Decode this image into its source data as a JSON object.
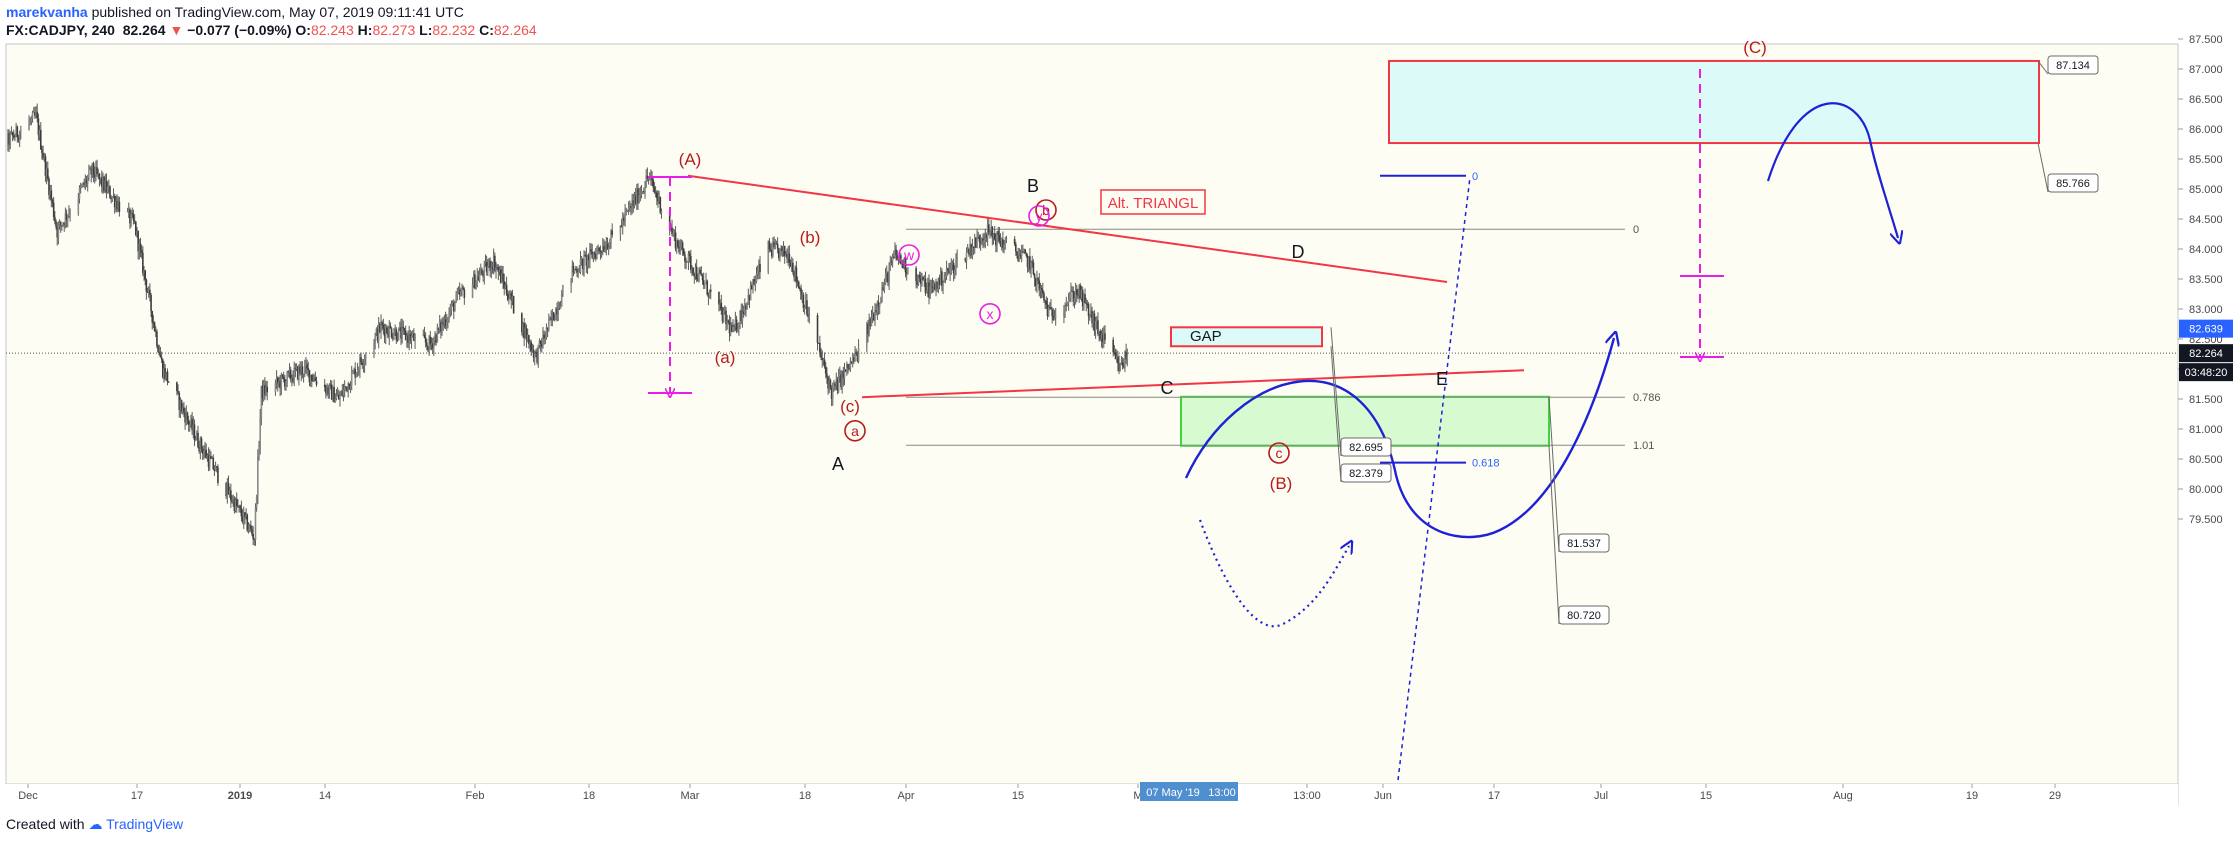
{
  "header": {
    "username": "marekvanha",
    "published_text": "published on TradingView.com, May 07, 2019 09:11:41 UTC",
    "symbol": "FX:CADJPY, 240",
    "last_price": "82.264",
    "change_arrow": "▼",
    "change": "−0.077 (−0.09%)",
    "ohlc": [
      {
        "label": "O:",
        "value": "82.243"
      },
      {
        "label": "H:",
        "value": "82.273"
      },
      {
        "label": "L:",
        "value": "82.232"
      },
      {
        "label": "C:",
        "value": "82.264"
      }
    ]
  },
  "footer": {
    "created_with": "Created with",
    "brand": "TradingView"
  },
  "colors": {
    "background": "#fdfdf3",
    "candle": "#5c5c5c",
    "wave_red": "#b71c1c",
    "trend_red": "#f23645",
    "blue": "#1e22d6",
    "magenta": "#e91ee6",
    "cyan_box": "#dcfbf8",
    "green_box": "#d8fad0",
    "green_border": "#3cd63c",
    "axis_blue": "#2962ff"
  },
  "chart_data": {
    "type": "candlestick",
    "symbol": "FX:CADJPY",
    "interval": "240",
    "ylim": [
      79.1,
      87.65
    ],
    "y_ticks": [
      "87.500",
      "87.000",
      "86.500",
      "86.000",
      "85.500",
      "85.000",
      "84.500",
      "84.000",
      "83.500",
      "83.000",
      "82.500",
      "82.000",
      "81.500",
      "81.000",
      "80.500",
      "80.000",
      "79.500"
    ],
    "x_ticks": [
      "Dec",
      "17",
      "2019",
      "14",
      "Feb",
      "18",
      "Mar",
      "18",
      "Apr",
      "15",
      "M",
      "13:00",
      "Jun",
      "17",
      "Jul",
      "15",
      "Aug",
      "19",
      "29"
    ],
    "crosshair_date_label": "07 May '19",
    "crosshair_time_label": "13:00",
    "price_markers": [
      {
        "label": "82.639",
        "value": 82.639,
        "color": "#2962ff"
      },
      {
        "label": "82.264",
        "value": 82.264,
        "color": "#131722"
      },
      {
        "label": "03:48:20",
        "value": 82.05,
        "color": "#131722"
      }
    ],
    "current_price": 82.264,
    "price_path": [
      {
        "date": "2018-11-27",
        "price": 85.6
      },
      {
        "date": "2018-12-03",
        "price": 86.2
      },
      {
        "date": "2018-12-06",
        "price": 84.3
      },
      {
        "date": "2018-12-11",
        "price": 85.3
      },
      {
        "date": "2018-12-17",
        "price": 84.4
      },
      {
        "date": "2018-12-21",
        "price": 82.0
      },
      {
        "date": "2018-12-26",
        "price": 80.8
      },
      {
        "date": "2019-01-03",
        "price": 79.2
      },
      {
        "date": "2019-01-04",
        "price": 81.6
      },
      {
        "date": "2019-01-10",
        "price": 82.0
      },
      {
        "date": "2019-01-15",
        "price": 81.5
      },
      {
        "date": "2019-01-21",
        "price": 82.7
      },
      {
        "date": "2019-01-28",
        "price": 82.4
      },
      {
        "date": "2019-02-01",
        "price": 83.2
      },
      {
        "date": "2019-02-06",
        "price": 83.8
      },
      {
        "date": "2019-02-12",
        "price": 82.2
      },
      {
        "date": "2019-02-17",
        "price": 83.6
      },
      {
        "date": "2019-02-23",
        "price": 84.2
      },
      {
        "date": "2019-02-28",
        "price": 85.2
      },
      {
        "date": "2019-03-04",
        "price": 84.1
      },
      {
        "date": "2019-03-08",
        "price": 83.4
      },
      {
        "date": "2019-03-12",
        "price": 82.6
      },
      {
        "date": "2019-03-17",
        "price": 84.0
      },
      {
        "date": "2019-03-20",
        "price": 83.9
      },
      {
        "date": "2019-03-24",
        "price": 82.4
      },
      {
        "date": "2019-03-26",
        "price": 81.6
      },
      {
        "date": "2019-03-30",
        "price": 82.3
      },
      {
        "date": "2019-04-04",
        "price": 83.9
      },
      {
        "date": "2019-04-09",
        "price": 83.3
      },
      {
        "date": "2019-04-17",
        "price": 84.3
      },
      {
        "date": "2019-04-23",
        "price": 83.8
      },
      {
        "date": "2019-04-26",
        "price": 82.9
      },
      {
        "date": "2019-04-30",
        "price": 83.3
      },
      {
        "date": "2019-05-03",
        "price": 82.6
      },
      {
        "date": "2019-05-06",
        "price": 82.0
      },
      {
        "date": "2019-05-07",
        "price": 82.26
      }
    ],
    "annotations": {
      "wave_labels": [
        {
          "text": "(A)",
          "date": "2019-03-01",
          "price": 85.5,
          "color": "#b71c1c"
        },
        {
          "text": "(b)",
          "date": "2019-03-19",
          "price": 84.2,
          "color": "#b71c1c"
        },
        {
          "text": "(a)",
          "date": "2019-03-10",
          "price": 82.2,
          "color": "#b71c1c"
        },
        {
          "text": "(c)",
          "date": "2019-03-27",
          "price": 81.38,
          "color": "#b71c1c"
        },
        {
          "text": "(B)",
          "date": "2019-05-21",
          "price": 80.1,
          "color": "#b71c1c"
        },
        {
          "text": "(C)",
          "date": "2019-06-29",
          "price": 87.37,
          "color": "#b71c1c"
        },
        {
          "text": "B",
          "date": "2019-04-15",
          "price": 85.05,
          "color": "#131722"
        },
        {
          "text": "D",
          "date": "2019-05-24",
          "price": 83.95,
          "color": "#131722"
        },
        {
          "text": "C",
          "date": "2019-05-06",
          "price": 81.68,
          "color": "#131722"
        },
        {
          "text": "E",
          "date": "2019-06-10",
          "price": 81.83,
          "color": "#131722"
        },
        {
          "text": "A",
          "date": "2019-03-26",
          "price": 80.42,
          "color": "#131722"
        }
      ],
      "circled_labels": [
        {
          "text": "a",
          "date": "2019-03-27",
          "price": 80.97,
          "color": "#b71c1c"
        },
        {
          "text": "b",
          "date": "2019-04-19",
          "price": 84.65,
          "color": "#b71c1c"
        },
        {
          "text": "c",
          "date": "2019-05-21",
          "price": 80.6,
          "color": "#b71c1c"
        },
        {
          "text": "w",
          "date": "2019-04-01",
          "price": 83.9,
          "color": "#e91ee6"
        },
        {
          "text": "x",
          "date": "2019-04-10",
          "price": 82.92,
          "color": "#e91ee6"
        },
        {
          "text": "y",
          "date": "2019-04-18",
          "price": 84.55,
          "color": "#e91ee6"
        }
      ],
      "text_boxes": [
        {
          "text": "Alt. TRIANGL",
          "date": "2019-05-02",
          "price": 84.75
        },
        {
          "text": "GAP",
          "date": "2019-05-08",
          "price": 82.6
        }
      ],
      "fib_levels": [
        {
          "label": "0",
          "price": 84.33
        },
        {
          "label": "0.786",
          "price": 81.53
        },
        {
          "label": "1.01",
          "price": 80.73
        }
      ],
      "fib_extension_levels": [
        {
          "label": "0",
          "price": 85.22
        },
        {
          "label": "0.618",
          "price": 80.44
        }
      ],
      "price_labels": [
        {
          "label": "87.134",
          "price": 87.134
        },
        {
          "label": "85.766",
          "price": 85.766
        },
        {
          "label": "82.695",
          "price": 82.695
        },
        {
          "label": "82.379",
          "price": 82.379
        },
        {
          "label": "81.537",
          "price": 81.537
        },
        {
          "label": "80.720",
          "price": 80.72
        }
      ],
      "zones": [
        {
          "name": "target_C",
          "top": 87.134,
          "bottom": 85.766,
          "from": "2019-06-05",
          "to": "2019-07-26"
        },
        {
          "name": "gap",
          "top": 82.695,
          "bottom": 82.379,
          "from": "2019-05-06",
          "to": "2019-05-17"
        },
        {
          "name": "target_B",
          "top": 81.537,
          "bottom": 80.72,
          "from": "2019-05-06",
          "to": "2019-06-15"
        }
      ],
      "triangle_upper": [
        {
          "date": "2019-03-01",
          "price": 85.22
        },
        {
          "date": "2019-06-09",
          "price": 83.45
        }
      ],
      "triangle_lower": [
        {
          "date": "2019-03-27",
          "price": 81.53
        },
        {
          "date": "2019-06-17",
          "price": 81.98
        }
      ],
      "measured_moves": [
        {
          "from": 85.2,
          "to": 81.6,
          "date": "2019-02-27"
        },
        {
          "from": 87.0,
          "to": 82.2,
          "date": "2019-06-14"
        }
      ]
    }
  }
}
